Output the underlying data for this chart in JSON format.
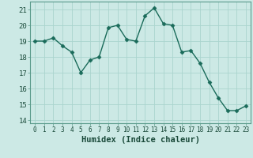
{
  "x": [
    0,
    1,
    2,
    3,
    4,
    5,
    6,
    7,
    8,
    9,
    10,
    11,
    12,
    13,
    14,
    15,
    16,
    17,
    18,
    19,
    20,
    21,
    22,
    23
  ],
  "y": [
    19.0,
    19.0,
    19.2,
    18.7,
    18.3,
    17.0,
    17.8,
    18.0,
    19.85,
    20.0,
    19.1,
    19.0,
    20.6,
    21.1,
    20.1,
    20.0,
    18.3,
    18.4,
    17.6,
    16.4,
    15.4,
    14.6,
    14.6,
    14.9
  ],
  "line_color": "#1a6b5a",
  "marker_color": "#1a6b5a",
  "bg_color": "#cce9e5",
  "grid_color": "#aad4ce",
  "xlabel": "Humidex (Indice chaleur)",
  "xlim": [
    -0.5,
    23.5
  ],
  "ylim": [
    13.8,
    21.5
  ],
  "yticks": [
    14,
    15,
    16,
    17,
    18,
    19,
    20,
    21
  ],
  "xtick_labels": [
    "0",
    "1",
    "2",
    "3",
    "4",
    "5",
    "6",
    "7",
    "8",
    "9",
    "10",
    "11",
    "12",
    "13",
    "14",
    "15",
    "16",
    "17",
    "18",
    "19",
    "20",
    "21",
    "22",
    "23"
  ]
}
